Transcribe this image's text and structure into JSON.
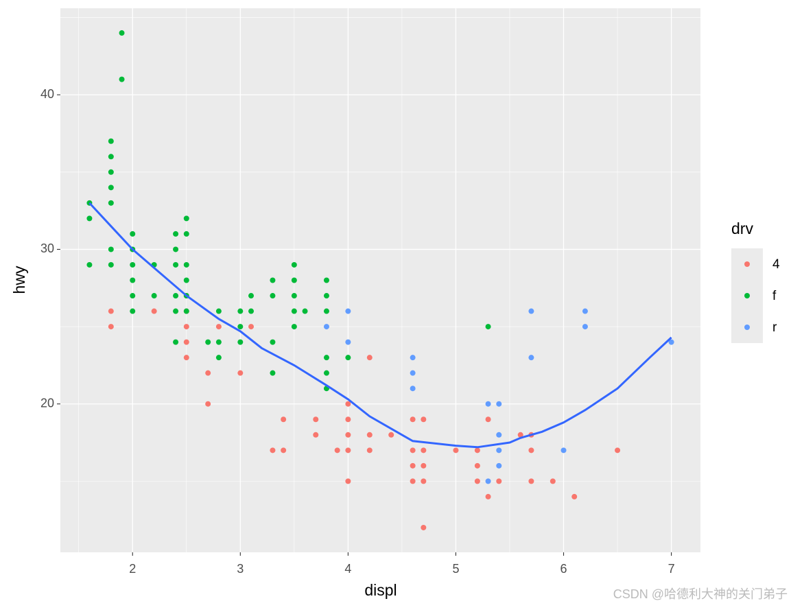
{
  "chart_data": {
    "type": "scatter",
    "x_label": "displ",
    "y_label": "hwy",
    "legend_title": "drv",
    "legend_position": "right",
    "watermark": "CSDN @哈德利大神的关门弟子",
    "xlim": [
      1.33,
      7.27
    ],
    "ylim": [
      10.4,
      45.6
    ],
    "xticks": [
      2,
      3,
      4,
      5,
      6,
      7
    ],
    "yticks": [
      20,
      30,
      40
    ],
    "minor_xticks": [
      1.5,
      2.5,
      3.5,
      4.5,
      5.5,
      6.5
    ],
    "minor_yticks": [
      15,
      25,
      35,
      45
    ],
    "grid": true,
    "series": [
      {
        "name": "4",
        "color": "#F8766D",
        "x": [
          1.8,
          1.8,
          2.2,
          2.5,
          2.5,
          2.5,
          2.5,
          2.5,
          2.7,
          2.7,
          2.8,
          3,
          3.1,
          3.3,
          3.4,
          3.4,
          3.7,
          3.7,
          3.9,
          4,
          4,
          4,
          4,
          4,
          4.2,
          4.2,
          4.2,
          4.4,
          4.6,
          4.6,
          4.6,
          4.6,
          4.7,
          4.7,
          4.7,
          4.7,
          4.7,
          5,
          5.2,
          5.2,
          5.2,
          5.3,
          5.3,
          5.4,
          5.6,
          5.7,
          5.7,
          5.7,
          5.9,
          6.1,
          6.5
        ],
        "values": [
          26,
          25,
          26,
          27,
          26,
          25,
          24,
          23,
          22,
          20,
          25,
          22,
          25,
          17,
          19,
          17,
          19,
          18,
          17,
          20,
          19,
          18,
          17,
          15,
          23,
          18,
          17,
          18,
          19,
          17,
          16,
          15,
          19,
          17,
          16,
          15,
          12,
          17,
          17,
          16,
          15,
          19,
          14,
          15,
          18,
          18,
          17,
          15,
          15,
          14,
          17
        ]
      },
      {
        "name": "f",
        "color": "#00BA38",
        "x": [
          1.6,
          1.6,
          1.6,
          1.8,
          1.8,
          1.8,
          1.8,
          1.8,
          1.8,
          1.8,
          1.9,
          1.9,
          2,
          2,
          2,
          2,
          2,
          2,
          2.2,
          2.2,
          2.4,
          2.4,
          2.4,
          2.4,
          2.4,
          2.4,
          2.5,
          2.5,
          2.5,
          2.5,
          2.5,
          2.5,
          2.7,
          2.8,
          2.8,
          2.8,
          3,
          3,
          3,
          3.1,
          3.1,
          3.3,
          3.3,
          3.3,
          3.3,
          3.5,
          3.5,
          3.5,
          3.5,
          3.5,
          3.6,
          3.8,
          3.8,
          3.8,
          3.8,
          3.8,
          3.8,
          4,
          5.3
        ],
        "values": [
          33,
          32,
          29,
          37,
          36,
          35,
          34,
          33,
          30,
          29,
          44,
          41,
          31,
          30,
          29,
          28,
          27,
          26,
          29,
          27,
          31,
          30,
          29,
          27,
          26,
          24,
          32,
          31,
          29,
          28,
          27,
          26,
          24,
          26,
          24,
          23,
          26,
          25,
          24,
          27,
          26,
          28,
          27,
          24,
          22,
          29,
          28,
          27,
          26,
          25,
          26,
          28,
          27,
          26,
          23,
          22,
          21,
          23,
          25
        ]
      },
      {
        "name": "r",
        "color": "#619CFF",
        "x": [
          3.8,
          4,
          4,
          4.6,
          4.6,
          4.6,
          5.3,
          5.3,
          5.4,
          5.4,
          5.4,
          5.4,
          5.7,
          5.7,
          6,
          6.2,
          6.2,
          7
        ],
        "values": [
          25,
          26,
          24,
          23,
          22,
          21,
          20,
          15,
          20,
          18,
          17,
          16,
          26,
          23,
          17,
          26,
          25,
          24
        ]
      }
    ],
    "smooth": {
      "color": "#3366FF",
      "x": [
        1.6,
        1.8,
        2,
        2.2,
        2.5,
        2.8,
        3,
        3.2,
        3.5,
        3.8,
        4,
        4.2,
        4.5,
        4.6,
        5,
        5.2,
        5.5,
        5.6,
        5.8,
        6,
        6.2,
        6.5,
        6.8,
        7
      ],
      "values": [
        33,
        31.5,
        30,
        28.8,
        27,
        25.5,
        24.7,
        23.6,
        22.5,
        21.2,
        20.3,
        19.2,
        18,
        17.6,
        17.3,
        17.2,
        17.5,
        17.8,
        18.2,
        18.8,
        19.6,
        21,
        23,
        24.3
      ]
    }
  }
}
